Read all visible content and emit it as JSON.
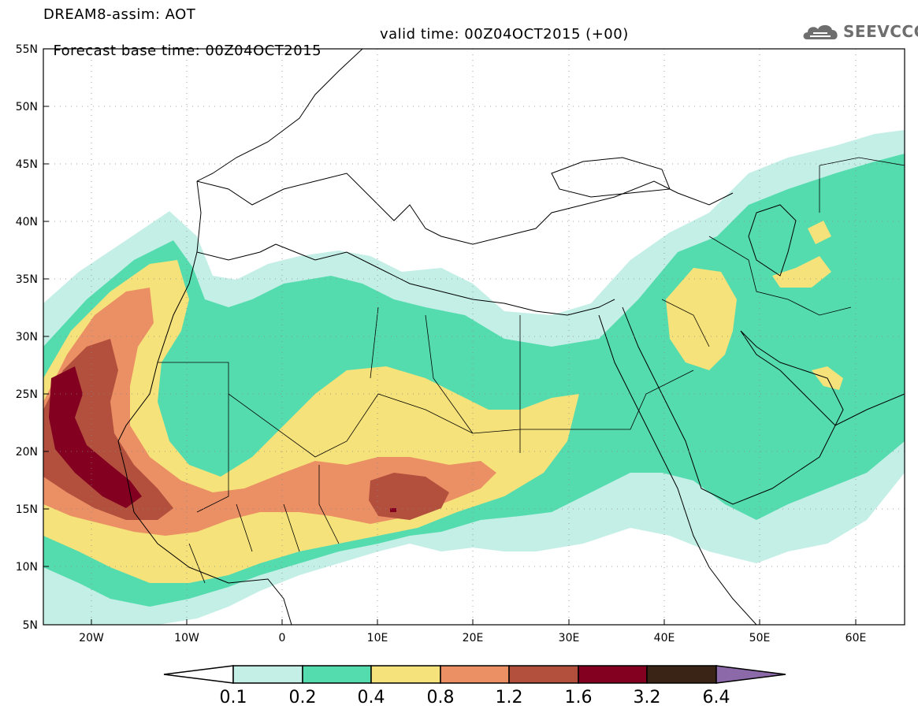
{
  "header": {
    "line1": "DREAM8-assim: AOT",
    "forecast": "Forecast base time: 00Z04OCT2015",
    "valid": "valid time: 00Z04OCT2015 (+00)"
  },
  "logo": {
    "text": "SEEVCCC",
    "icon": "cloud-icon"
  },
  "map": {
    "extent": {
      "lon": [
        -25,
        65
      ],
      "lat": [
        5,
        55
      ]
    },
    "lat_ticks": [
      "55N",
      "50N",
      "45N",
      "40N",
      "35N",
      "30N",
      "25N",
      "20N",
      "15N",
      "10N",
      "5N"
    ],
    "lon_ticks": [
      "20W",
      "10W",
      "0",
      "10E",
      "20E",
      "30E",
      "40E",
      "50E",
      "60E"
    ],
    "grid": "dotted",
    "variable": "AOT"
  },
  "colorbar": {
    "levels": [
      "0.1",
      "0.2",
      "0.4",
      "0.8",
      "1.2",
      "1.6",
      "3.2",
      "6.4"
    ],
    "colors": [
      "#ffffff",
      "#c4efe6",
      "#55dcae",
      "#f6e27a",
      "#eb8f64",
      "#b3503d",
      "#830021",
      "#3a2415",
      "#8c6aa9"
    ]
  }
}
